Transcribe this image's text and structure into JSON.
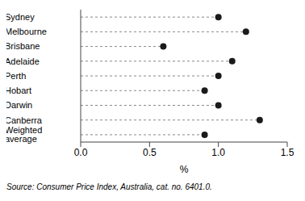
{
  "chart_data": {
    "type": "dot",
    "orientation": "horizontal",
    "categories": [
      "Sydney",
      "Melbourne",
      "Brisbane",
      "Adelaide",
      "Perth",
      "Hobart",
      "Darwin",
      "Canberra",
      "Weighted average"
    ],
    "values": [
      1.0,
      1.2,
      0.6,
      1.1,
      1.0,
      0.9,
      1.0,
      1.3,
      0.9
    ],
    "color": "#1a1a1a",
    "line_style": "dashed",
    "x_label": "%",
    "xlim": [
      0,
      1.5
    ],
    "xticks": [
      {
        "value": 0,
        "label": "0.0"
      },
      0.5,
      {
        "value": 1,
        "label": "1.0"
      },
      1.5
    ],
    "grid": false,
    "source": "Source: Consumer Price Index, Australia, cat. no. 6401.0."
  }
}
